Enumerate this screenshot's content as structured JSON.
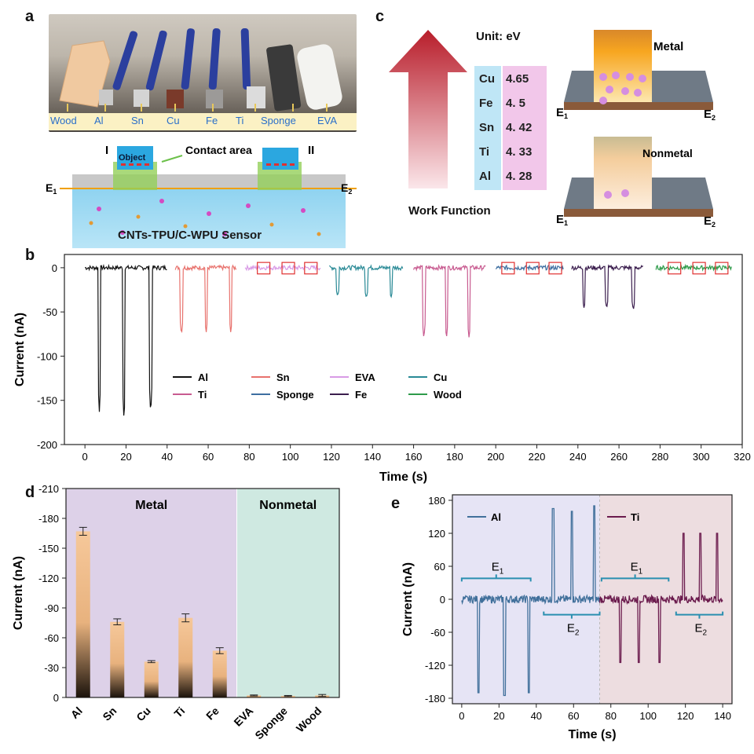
{
  "panels": {
    "a": "a",
    "b": "b",
    "c": "c",
    "d": "d",
    "e": "e"
  },
  "panel_a": {
    "sample_labels": [
      "Wood",
      "Al",
      "Sn",
      "Cu",
      "Fe",
      "Ti",
      "Sponge",
      "EVA"
    ],
    "object_label": "Object",
    "roman_1": "I",
    "roman_2": "II",
    "contact_area": "Contact area",
    "e1": "E",
    "e2": "E",
    "sub1": "1",
    "sub2": "2",
    "sensor_label": "CNTs-TPU/C-WPU Sensor"
  },
  "panel_c": {
    "unit": "Unit: eV",
    "arrow_label": "Work Function",
    "elements": [
      "Cu",
      "Fe",
      "Sn",
      "Ti",
      "Al"
    ],
    "values": [
      "4.65",
      "4. 5",
      "4. 42",
      "4. 33",
      "4. 28"
    ],
    "metal_label": "Metal",
    "nonmetal_label": "Nonmetal",
    "e1": "E",
    "e2": "E",
    "sub1": "1",
    "sub2": "2"
  },
  "colors": {
    "Al": "#111111",
    "Sn": "#e8726d",
    "EVA": "#d99be6",
    "Cu": "#2a8a96",
    "Ti": "#c85b90",
    "Sponge": "#3d6ea0",
    "Fe": "#3b1e4e",
    "Wood": "#2e9b4a",
    "e_Al": "#41709b",
    "e_Ti": "#6b1b4d"
  },
  "chart_data": [
    {
      "type": "line",
      "panel": "b",
      "xlabel": "Time (s)",
      "ylabel": "Current (nA)",
      "xlim": [
        -10,
        320
      ],
      "ylim": [
        -200,
        15
      ],
      "xticks": [
        0,
        20,
        40,
        60,
        80,
        100,
        120,
        140,
        160,
        180,
        200,
        220,
        240,
        260,
        280,
        300,
        320
      ],
      "yticks": [
        0,
        -50,
        -100,
        -150,
        -200
      ],
      "legend": [
        "Al",
        "Sn",
        "EVA",
        "Cu",
        "Ti",
        "Sponge",
        "Fe",
        "Wood"
      ],
      "legend_placement": "lower-center",
      "series": [
        {
          "name": "Al",
          "x_range": [
            0,
            40
          ],
          "spike_times": [
            7,
            19,
            32
          ],
          "spike_values": [
            -163,
            -173,
            -166
          ]
        },
        {
          "name": "Sn",
          "x_range": [
            44,
            74
          ],
          "spike_times": [
            47,
            59,
            71
          ],
          "spike_values": [
            -76,
            -74,
            -74
          ]
        },
        {
          "name": "EVA",
          "x_range": [
            78,
            115
          ],
          "spike_times": [],
          "spike_values": []
        },
        {
          "name": "Cu",
          "x_range": [
            119,
            155
          ],
          "spike_times": [
            123,
            137,
            149
          ],
          "spike_values": [
            -32,
            -34,
            -34
          ]
        },
        {
          "name": "Ti",
          "x_range": [
            160,
            195
          ],
          "spike_times": [
            165,
            176,
            187
          ],
          "spike_values": [
            -80,
            -80,
            -80
          ]
        },
        {
          "name": "Sponge",
          "x_range": [
            200,
            233
          ],
          "spike_times": [],
          "spike_values": []
        },
        {
          "name": "Fe",
          "x_range": [
            237,
            272
          ],
          "spike_times": [
            243,
            254,
            267
          ],
          "spike_values": [
            -46,
            -46,
            -48
          ]
        },
        {
          "name": "Wood",
          "x_range": [
            278,
            315
          ],
          "spike_times": [],
          "spike_values": []
        }
      ],
      "highlight_boxes_x": [
        87,
        99,
        110,
        206,
        218,
        229,
        287,
        299,
        310
      ]
    },
    {
      "type": "bar",
      "panel": "d",
      "ylabel": "Current (nA)",
      "ylim": [
        0,
        -210
      ],
      "yticks": [
        0,
        -30,
        -60,
        -90,
        -120,
        -150,
        -180,
        -210
      ],
      "categories": [
        "Al",
        "Sn",
        "Cu",
        "Ti",
        "Fe",
        "EVA",
        "Sponge",
        "Wood"
      ],
      "values": [
        -167,
        -76,
        -36,
        -80,
        -47,
        -2,
        -1.5,
        -2
      ],
      "errors": [
        4,
        3,
        1,
        4,
        3,
        0.5,
        0.5,
        1
      ],
      "groups": [
        {
          "label": "Metal",
          "count": 5,
          "color": "#ddd1e8"
        },
        {
          "label": "Nonmetal",
          "count": 3,
          "color": "#cfe9e1"
        }
      ]
    },
    {
      "type": "line",
      "panel": "e",
      "xlabel": "Time (s)",
      "ylabel": "Current (nA)",
      "xlim": [
        -5,
        145
      ],
      "ylim": [
        -190,
        190
      ],
      "xticks": [
        0,
        20,
        40,
        60,
        80,
        100,
        120,
        140
      ],
      "yticks": [
        180,
        120,
        60,
        0,
        -60,
        -120,
        -180
      ],
      "series": [
        {
          "name": "Al",
          "x_range": [
            0,
            74
          ],
          "neg_spikes_t": [
            9,
            23,
            36
          ],
          "neg_spikes_v": [
            -170,
            -175,
            -170
          ],
          "pos_spikes_t": [
            49,
            59,
            71
          ],
          "pos_spikes_v": [
            165,
            160,
            170
          ]
        },
        {
          "name": "Ti",
          "x_range": [
            74,
            140
          ],
          "neg_spikes_t": [
            85,
            95,
            106
          ],
          "neg_spikes_v": [
            -115,
            -115,
            -115
          ],
          "pos_spikes_t": [
            119,
            128,
            137
          ],
          "pos_spikes_v": [
            120,
            120,
            120
          ]
        }
      ],
      "background_regions": [
        {
          "x": [
            -5,
            74
          ],
          "color": "#e6e4f5"
        },
        {
          "x": [
            74,
            145
          ],
          "color": "#eddde0"
        }
      ],
      "annotations": [
        {
          "label": "E",
          "sub": "1",
          "x_range": [
            0,
            37
          ],
          "side": "above"
        },
        {
          "label": "E",
          "sub": "2",
          "x_range": [
            44,
            74
          ],
          "side": "below"
        },
        {
          "label": "E",
          "sub": "1",
          "x_range": [
            75,
            111
          ],
          "side": "above"
        },
        {
          "label": "E",
          "sub": "2",
          "x_range": [
            115,
            140
          ],
          "side": "below"
        }
      ]
    }
  ]
}
